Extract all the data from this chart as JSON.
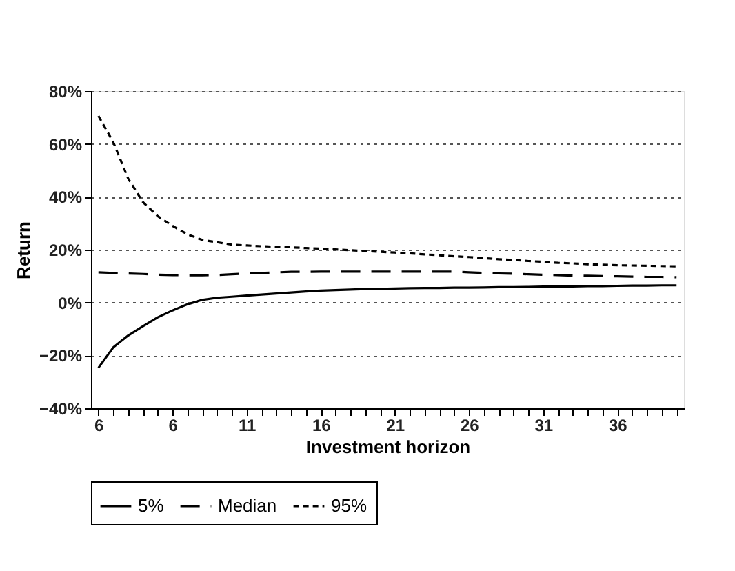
{
  "chart_data": {
    "type": "line",
    "xlabel": "Investment horizon",
    "ylabel": "Return",
    "categories": [
      "6",
      null,
      null,
      null,
      null,
      "6",
      null,
      null,
      null,
      null,
      "11",
      null,
      null,
      null,
      null,
      "16",
      null,
      null,
      null,
      null,
      "21",
      null,
      null,
      null,
      null,
      "26",
      null,
      null,
      null,
      null,
      "31",
      null,
      null,
      null,
      null,
      "36",
      null,
      null,
      null,
      null
    ],
    "ylim": [
      -40,
      80
    ],
    "yticks": [
      {
        "value": -40,
        "label": "−40%"
      },
      {
        "value": -20,
        "label": "−20%"
      },
      {
        "value": 0,
        "label": "0%"
      },
      {
        "value": 20,
        "label": "20%"
      },
      {
        "value": 40,
        "label": "40%"
      },
      {
        "value": 60,
        "label": "60%"
      },
      {
        "value": 80,
        "label": "80%"
      }
    ],
    "grid": "y",
    "legend": "bottom",
    "series": [
      {
        "name": "5%",
        "color": "#000000",
        "line_style": "solid",
        "values": [
          -24.7,
          -17,
          -12.5,
          -9,
          -5.6,
          -3,
          -0.7,
          1,
          1.8,
          2.2,
          2.6,
          3,
          3.4,
          3.8,
          4.2,
          4.5,
          4.7,
          4.9,
          5.1,
          5.2,
          5.3,
          5.4,
          5.5,
          5.5,
          5.6,
          5.6,
          5.7,
          5.8,
          5.8,
          5.9,
          6,
          6,
          6.1,
          6.2,
          6.2,
          6.3,
          6.4,
          6.4,
          6.5,
          6.5
        ]
      },
      {
        "name": "Median",
        "color": "#000000",
        "line_style": "dashed",
        "values": [
          11.4,
          11.2,
          11,
          10.8,
          10.5,
          10.4,
          10.3,
          10.3,
          10.4,
          10.7,
          11,
          11.2,
          11.4,
          11.6,
          11.6,
          11.7,
          11.7,
          11.7,
          11.7,
          11.7,
          11.7,
          11.7,
          11.7,
          11.7,
          11.7,
          11.4,
          11.2,
          11,
          10.9,
          10.7,
          10.5,
          10.4,
          10.2,
          10.1,
          10,
          9.9,
          9.8,
          9.7,
          9.7,
          9.6
        ]
      },
      {
        "name": "95%",
        "color": "#000000",
        "line_style": "dotted",
        "values": [
          70.6,
          60.7,
          47,
          38,
          32.7,
          29,
          25.8,
          23.7,
          22.8,
          21.9,
          21.6,
          21.3,
          21.1,
          20.9,
          20.6,
          20.4,
          20.1,
          19.8,
          19.5,
          19.2,
          18.9,
          18.6,
          18.2,
          17.9,
          17.5,
          17.2,
          16.8,
          16.4,
          16.1,
          15.7,
          15.4,
          15,
          14.8,
          14.5,
          14.3,
          14.1,
          14,
          13.9,
          13.8,
          13.7
        ]
      }
    ]
  }
}
